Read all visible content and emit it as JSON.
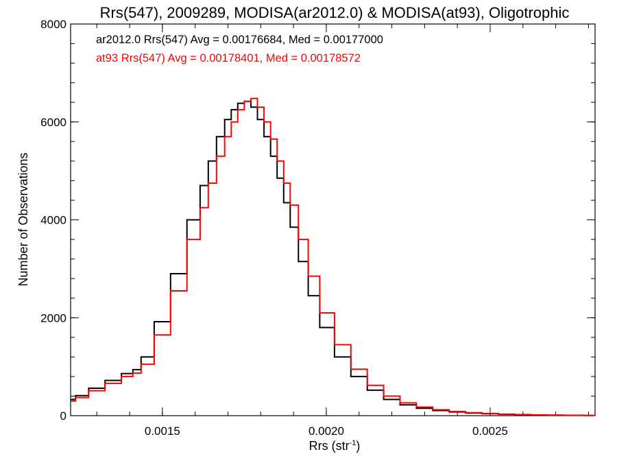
{
  "chart_data": {
    "type": "line",
    "title": "Rrs(547), 2009289, MODISA(ar2012.0) & MODISA(at93), Oligotrophic",
    "xlabel_main": "Rrs (str",
    "xlabel_sup": "-1",
    "xlabel_close": ")",
    "ylabel": "Number of Observations",
    "xlim": [
      0.00122,
      0.00282
    ],
    "ylim": [
      0,
      8000
    ],
    "x_ticks": [
      {
        "value": 0.0015,
        "label": "0.0015"
      },
      {
        "value": 0.002,
        "label": "0.0020"
      },
      {
        "value": 0.0025,
        "label": "0.0025"
      }
    ],
    "y_ticks": [
      {
        "value": 0,
        "label": "0"
      },
      {
        "value": 2000,
        "label": "2000"
      },
      {
        "value": 4000,
        "label": "4000"
      },
      {
        "value": 6000,
        "label": "6000"
      },
      {
        "value": 8000,
        "label": "8000"
      }
    ],
    "grid": false,
    "legend_placement": "top-left",
    "series": [
      {
        "name": "ar2012.0",
        "color": "#000000",
        "legend_text": "ar2012.0 Rrs(547) Avg = 0.00176684, Med = 0.00177000",
        "x": [
          0.00122,
          0.00125,
          0.0013,
          0.00135,
          0.0014,
          0.00142,
          0.00145,
          0.0015,
          0.00155,
          0.0016,
          0.00163,
          0.00165,
          0.00168,
          0.0017,
          0.00172,
          0.00174,
          0.00176,
          0.00178,
          0.0018,
          0.00182,
          0.00184,
          0.00186,
          0.00188,
          0.0019,
          0.00193,
          0.00196,
          0.002,
          0.00205,
          0.0021,
          0.00215,
          0.0022,
          0.00225,
          0.0023,
          0.00235,
          0.0024,
          0.00245,
          0.0025,
          0.00255,
          0.0026,
          0.00265,
          0.0027,
          0.00275,
          0.00282
        ],
        "y": [
          330,
          410,
          560,
          720,
          860,
          940,
          1200,
          1920,
          2900,
          4000,
          4700,
          5200,
          5700,
          6050,
          6250,
          6380,
          6420,
          6300,
          6050,
          5700,
          5300,
          4850,
          4350,
          3850,
          3150,
          2450,
          1800,
          1200,
          800,
          520,
          330,
          220,
          150,
          105,
          75,
          55,
          40,
          28,
          20,
          14,
          10,
          7,
          5
        ]
      },
      {
        "name": "at93",
        "color": "#ff0000",
        "legend_text": "at93 Rrs(547) Avg = 0.00178401, Med = 0.00178572",
        "x": [
          0.00122,
          0.00125,
          0.0013,
          0.00135,
          0.0014,
          0.00142,
          0.00145,
          0.0015,
          0.00155,
          0.0016,
          0.00163,
          0.00165,
          0.00168,
          0.0017,
          0.00172,
          0.00174,
          0.00176,
          0.00178,
          0.0018,
          0.00182,
          0.00184,
          0.00186,
          0.00188,
          0.0019,
          0.00193,
          0.00196,
          0.002,
          0.00205,
          0.0021,
          0.00215,
          0.0022,
          0.00225,
          0.0023,
          0.00235,
          0.0024,
          0.00245,
          0.0025,
          0.00255,
          0.0026,
          0.00265,
          0.0027,
          0.00275,
          0.00282
        ],
        "y": [
          300,
          370,
          510,
          660,
          800,
          870,
          1050,
          1650,
          2550,
          3600,
          4250,
          4750,
          5300,
          5700,
          6000,
          6250,
          6420,
          6480,
          6300,
          6000,
          5650,
          5200,
          4750,
          4300,
          3600,
          2850,
          2100,
          1450,
          950,
          620,
          400,
          260,
          175,
          120,
          85,
          62,
          45,
          32,
          22,
          16,
          11,
          8,
          5
        ]
      }
    ]
  }
}
